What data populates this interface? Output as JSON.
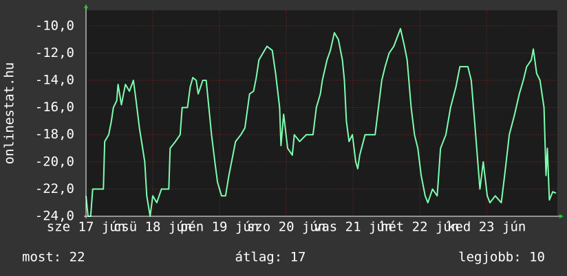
{
  "chart_data": {
    "type": "line",
    "y_label": "onlinestat.hu",
    "x": [
      0,
      0.03,
      0.07,
      0.1,
      0.26,
      0.28,
      0.34,
      0.38,
      0.41,
      0.46,
      0.48,
      0.53,
      0.59,
      0.65,
      0.71,
      0.75,
      0.8,
      0.88,
      0.91,
      0.96,
      1.0,
      1.06,
      1.13,
      1.24,
      1.26,
      1.34,
      1.41,
      1.44,
      1.52,
      1.56,
      1.6,
      1.65,
      1.68,
      1.75,
      1.8,
      1.84,
      1.88,
      1.93,
      1.97,
      2.03,
      2.09,
      2.14,
      2.18,
      2.24,
      2.32,
      2.38,
      2.45,
      2.51,
      2.55,
      2.59,
      2.71,
      2.79,
      2.84,
      2.9,
      2.92,
      2.96,
      3.02,
      3.09,
      3.12,
      3.2,
      3.3,
      3.4,
      3.45,
      3.51,
      3.54,
      3.61,
      3.66,
      3.72,
      3.78,
      3.84,
      3.87,
      3.9,
      3.94,
      3.99,
      4.04,
      4.07,
      4.1,
      4.18,
      4.33,
      4.38,
      4.43,
      4.48,
      4.54,
      4.61,
      4.71,
      4.77,
      4.81,
      4.87,
      4.92,
      4.97,
      5.02,
      5.08,
      5.12,
      5.19,
      5.26,
      5.31,
      5.39,
      5.46,
      5.54,
      5.6,
      5.72,
      5.77,
      5.82,
      5.9,
      5.95,
      6.01,
      6.05,
      6.13,
      6.22,
      6.27,
      6.34,
      6.42,
      6.49,
      6.55,
      6.6,
      6.67,
      6.7,
      6.75,
      6.8,
      6.86,
      6.89,
      6.91,
      6.94,
      6.99,
      7.04
    ],
    "series": [
      {
        "color": "#7dffb0",
        "values": [
          -22.5,
          -24,
          -24,
          -22,
          -22,
          -18.5,
          -18,
          -17,
          -16,
          -15.5,
          -14.3,
          -15.8,
          -14.3,
          -14.8,
          -14,
          -15.5,
          -17.5,
          -20,
          -22.5,
          -24,
          -22.5,
          -23,
          -22,
          -22,
          -19,
          -18.5,
          -18,
          -16,
          -16,
          -14.5,
          -13.8,
          -14,
          -15,
          -14,
          -14,
          -16,
          -18,
          -20,
          -21.5,
          -22.5,
          -22.5,
          -21,
          -20,
          -18.5,
          -18,
          -17.5,
          -15,
          -14.8,
          -13.8,
          -12.5,
          -11.5,
          -11.8,
          -13.5,
          -16,
          -18.8,
          -16.5,
          -19,
          -19.5,
          -18,
          -18.5,
          -18,
          -18,
          -16,
          -15,
          -14,
          -12.5,
          -11.8,
          -10.5,
          -11,
          -12.5,
          -14,
          -17,
          -18.5,
          -18,
          -20,
          -20.5,
          -19.5,
          -18,
          -18,
          -16,
          -14,
          -13,
          -12,
          -11.5,
          -10.2,
          -11.5,
          -12.5,
          -16,
          -18,
          -19,
          -21,
          -22.5,
          -23,
          -22,
          -22.5,
          -19,
          -18,
          -16,
          -14.5,
          -13,
          -13,
          -14,
          -17,
          -22,
          -20,
          -22.5,
          -23,
          -22.5,
          -23,
          -21,
          -18,
          -16.5,
          -15,
          -14,
          -13,
          -12.5,
          -11.7,
          -13.5,
          -14,
          -16,
          -21,
          -19,
          -22.8,
          -22.2,
          -22.3
        ]
      }
    ],
    "xlim": [
      0,
      7.06
    ],
    "xticks": [
      {
        "value": 0,
        "label": "sze 17 jún"
      },
      {
        "value": 1,
        "label": "csü 18 jún"
      },
      {
        "value": 2,
        "label": "pén 19 jún"
      },
      {
        "value": 3,
        "label": "szo 20 jún"
      },
      {
        "value": 4,
        "label": "vas 21 jún"
      },
      {
        "value": 5,
        "label": "hét 22 jún"
      },
      {
        "value": 6,
        "label": "ked 23 jún"
      }
    ],
    "ylim": [
      -24,
      -8.85
    ],
    "yticks": [
      {
        "value": -24,
        "label": "-24,0"
      },
      {
        "value": -22,
        "label": "-22,0"
      },
      {
        "value": -20,
        "label": "-20,0"
      },
      {
        "value": -18,
        "label": "-18,0"
      },
      {
        "value": -16,
        "label": "-16,0"
      },
      {
        "value": -14,
        "label": "-14,0"
      },
      {
        "value": -12,
        "label": "-12,0"
      },
      {
        "value": -10,
        "label": "-10,0"
      }
    ],
    "grid": true
  },
  "footer": {
    "current": "most: 22",
    "average": "átlag: 17",
    "best": "legjobb: 10"
  }
}
